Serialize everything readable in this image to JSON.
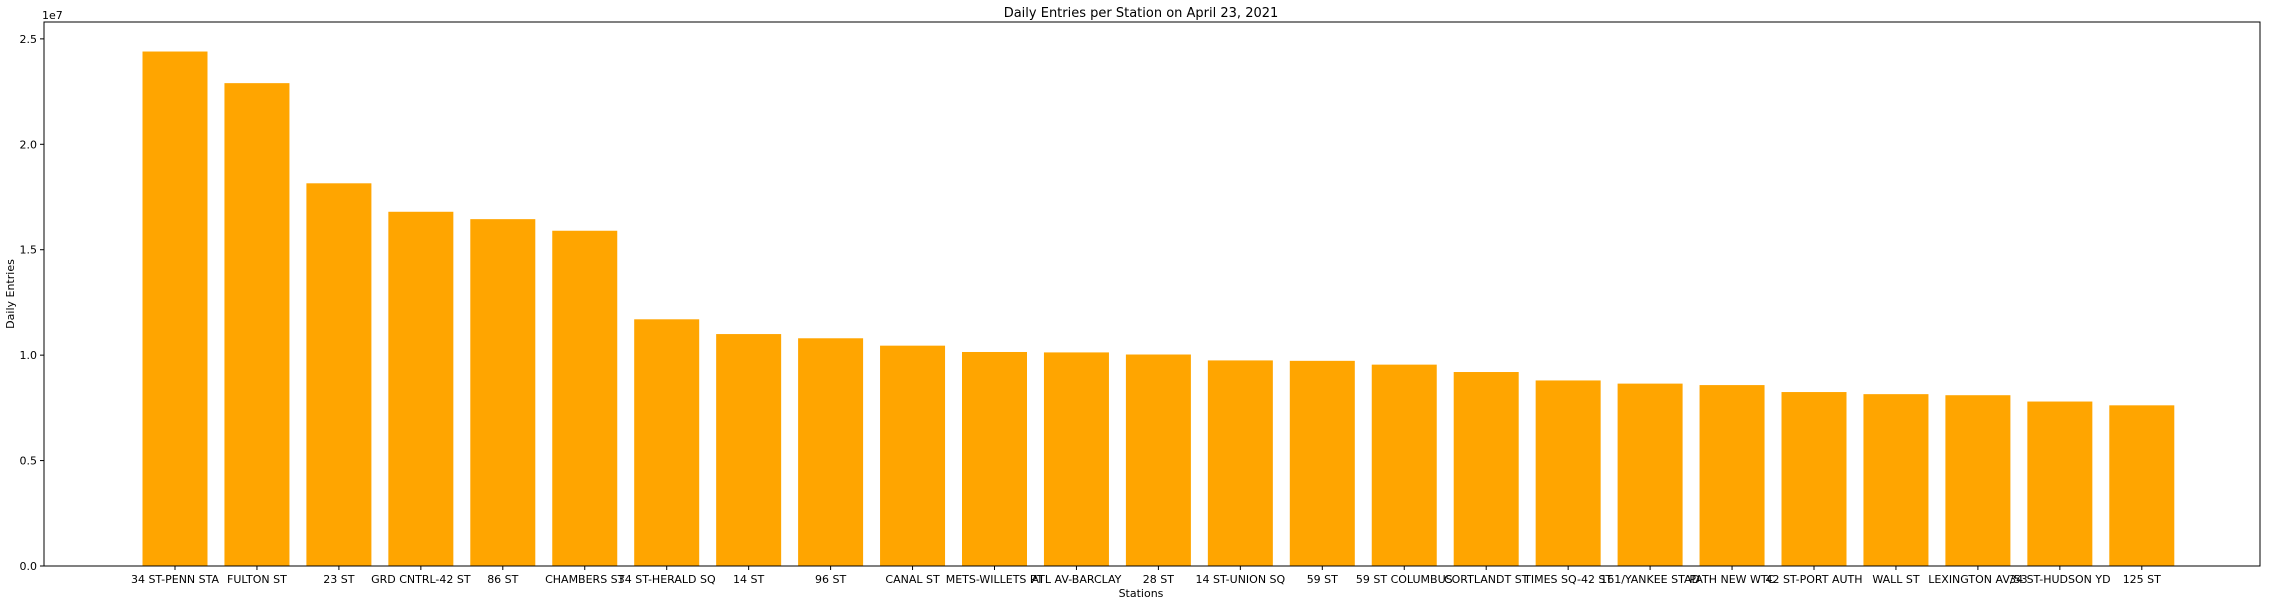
{
  "chart_data": {
    "type": "bar",
    "title": "Daily Entries per Station on April 23, 2021",
    "xlabel": "Stations",
    "ylabel": "Daily Entries",
    "offset_label": "1e7",
    "bar_color": "#ffa500",
    "ylim": [
      0,
      2.58
    ],
    "yticks": [
      0.0,
      0.5,
      1.0,
      1.5,
      2.0,
      2.5
    ],
    "ytick_labels": [
      "0.0",
      "0.5",
      "1.0",
      "1.5",
      "2.0",
      "2.5"
    ],
    "grid": false,
    "categories": [
      "34 ST-PENN STA",
      "FULTON ST",
      "23 ST",
      "GRD CNTRL-42 ST",
      "86 ST",
      "CHAMBERS ST",
      "34 ST-HERALD SQ",
      "14 ST",
      "96 ST",
      "CANAL ST",
      "METS-WILLETS PT",
      "ATL AV-BARCLAY",
      "28 ST",
      "14 ST-UNION SQ",
      "59 ST",
      "59 ST COLUMBUS",
      "CORTLANDT ST",
      "TIMES SQ-42 ST",
      "161/YANKEE STAD",
      "PATH NEW WTC",
      "42 ST-PORT AUTH",
      "WALL ST",
      "LEXINGTON AV/53",
      "34 ST-HUDSON YD",
      "125 ST"
    ],
    "values": [
      2.44,
      2.29,
      1.815,
      1.68,
      1.645,
      1.59,
      1.17,
      1.1,
      1.08,
      1.045,
      1.015,
      1.013,
      1.003,
      0.975,
      0.973,
      0.955,
      0.92,
      0.88,
      0.865,
      0.858,
      0.825,
      0.815,
      0.81,
      0.78,
      0.762
    ]
  }
}
